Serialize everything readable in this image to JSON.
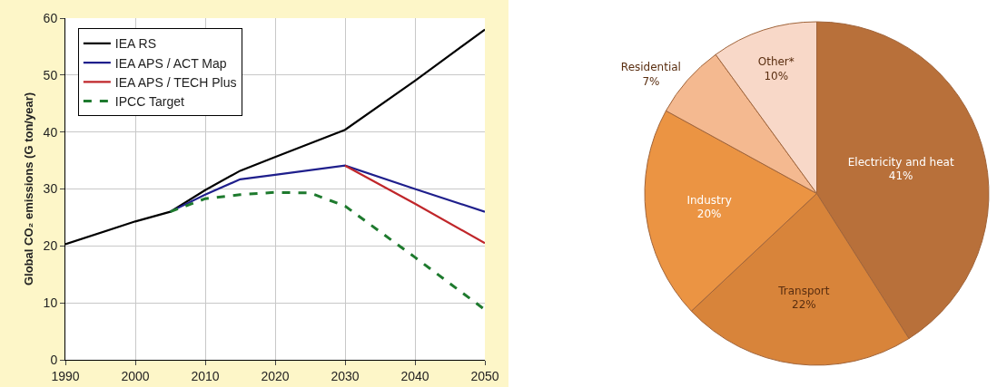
{
  "chart_data": [
    {
      "type": "line",
      "ylabel": "Global CO₂ emissions (G ton/year)",
      "xlim": [
        1990,
        2050
      ],
      "xticks": [
        1990,
        2000,
        2010,
        2020,
        2030,
        2040,
        2050
      ],
      "ylim": [
        0,
        60
      ],
      "yticks": [
        0,
        10,
        20,
        30,
        40,
        50,
        60
      ],
      "grid": true,
      "legend": "top left",
      "line_style": "solid",
      "marker": "none",
      "series": [
        {
          "name": "IEA RS",
          "color": "#000000",
          "x": [
            1990,
            2000,
            2005,
            2010,
            2015,
            2020,
            2025,
            2030,
            2040,
            2050
          ],
          "values": [
            20.3,
            24.3,
            26,
            29.8,
            33.2,
            35.6,
            38,
            40.4,
            49,
            58
          ]
        },
        {
          "name": "IEA APS / ACT Map",
          "color": "#1f1f8c",
          "x": [
            2005,
            2010,
            2015,
            2020,
            2030,
            2040,
            2050
          ],
          "values": [
            26,
            29,
            31.7,
            32.5,
            34.1,
            30,
            26
          ]
        },
        {
          "name": "IEA APS / TECH Plus",
          "color": "#c0262a",
          "x": [
            2030,
            2040,
            2050
          ],
          "values": [
            34.1,
            27.4,
            20.5
          ]
        },
        {
          "name": "IPCC Target",
          "color": "#1e7a2e",
          "line_style": "dashed",
          "x": [
            2005,
            2010,
            2015,
            2020,
            2025,
            2030,
            2040,
            2050
          ],
          "values": [
            26,
            28.3,
            29,
            29.4,
            29.3,
            27,
            18,
            8.8
          ]
        }
      ]
    },
    {
      "type": "pie",
      "categories": [
        "Electricity and heat",
        "Transport",
        "Industry",
        "Residential",
        "Other*"
      ],
      "values": [
        41,
        22,
        20,
        7,
        10
      ],
      "value_labels": [
        "41%",
        "22%",
        "20%",
        "7%",
        "10%"
      ],
      "colors": [
        "#b8703a",
        "#d8843a",
        "#eb9443",
        "#f4b990",
        "#f8d8c8"
      ],
      "legend": false
    }
  ]
}
